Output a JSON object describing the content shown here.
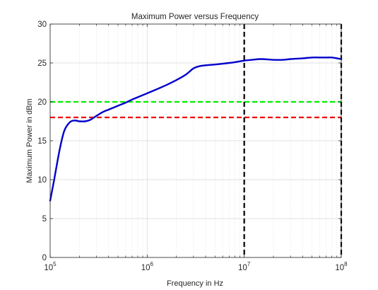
{
  "chart_data": {
    "type": "line",
    "title": "Maximum Power versus Frequency",
    "xlabel": "Frequency in Hz",
    "ylabel": "Maximum Power in dBm",
    "xscale": "log",
    "xlim": [
      100000,
      100000000
    ],
    "ylim": [
      0,
      30
    ],
    "grid": true,
    "legend": "none",
    "x_ticks": [
      {
        "value": 100000,
        "base": "10",
        "exp": "5"
      },
      {
        "value": 1000000,
        "base": "10",
        "exp": "6"
      },
      {
        "value": 10000000,
        "base": "10",
        "exp": "7"
      },
      {
        "value": 100000000,
        "base": "10",
        "exp": "8"
      }
    ],
    "y_ticks": [
      {
        "value": 0,
        "label": "0"
      },
      {
        "value": 5,
        "label": "5"
      },
      {
        "value": 10,
        "label": "10"
      },
      {
        "value": 15,
        "label": "15"
      },
      {
        "value": 20,
        "label": "20"
      },
      {
        "value": 25,
        "label": "25"
      },
      {
        "value": 30,
        "label": "30"
      }
    ],
    "series": [
      {
        "color": "#0000cc",
        "style": "solid",
        "x": [
          100000,
          110000,
          125000,
          140000,
          160000,
          180000,
          200000,
          230000,
          260000,
          300000,
          350000,
          400000,
          500000,
          600000,
          700000,
          800000,
          1000000,
          1300000,
          1600000,
          2000000,
          2500000,
          3000000,
          3500000,
          4000000,
          5000000,
          6000000,
          7000000,
          8000000,
          10000000,
          12000000,
          15000000,
          20000000,
          25000000,
          30000000,
          40000000,
          50000000,
          60000000,
          70000000,
          80000000,
          90000000,
          100000000
        ],
        "y": [
          7.3,
          10.0,
          13.8,
          16.3,
          17.4,
          17.6,
          17.5,
          17.5,
          17.7,
          18.2,
          18.7,
          19.0,
          19.5,
          19.9,
          20.3,
          20.6,
          21.1,
          21.7,
          22.2,
          22.8,
          23.5,
          24.3,
          24.6,
          24.7,
          24.8,
          24.9,
          25.0,
          25.1,
          25.3,
          25.4,
          25.5,
          25.4,
          25.4,
          25.5,
          25.6,
          25.7,
          25.7,
          25.7,
          25.7,
          25.6,
          25.5
        ]
      }
    ],
    "reference_lines": [
      {
        "orientation": "horizontal",
        "value": 20,
        "color": "#00ee00",
        "style": "dashed"
      },
      {
        "orientation": "horizontal",
        "value": 18,
        "color": "#ee0000",
        "style": "dashed"
      },
      {
        "orientation": "vertical",
        "value": 10000000,
        "color": "#000000",
        "style": "dashed"
      },
      {
        "orientation": "vertical",
        "value": 100000000,
        "color": "#000000",
        "style": "dashed"
      }
    ]
  }
}
